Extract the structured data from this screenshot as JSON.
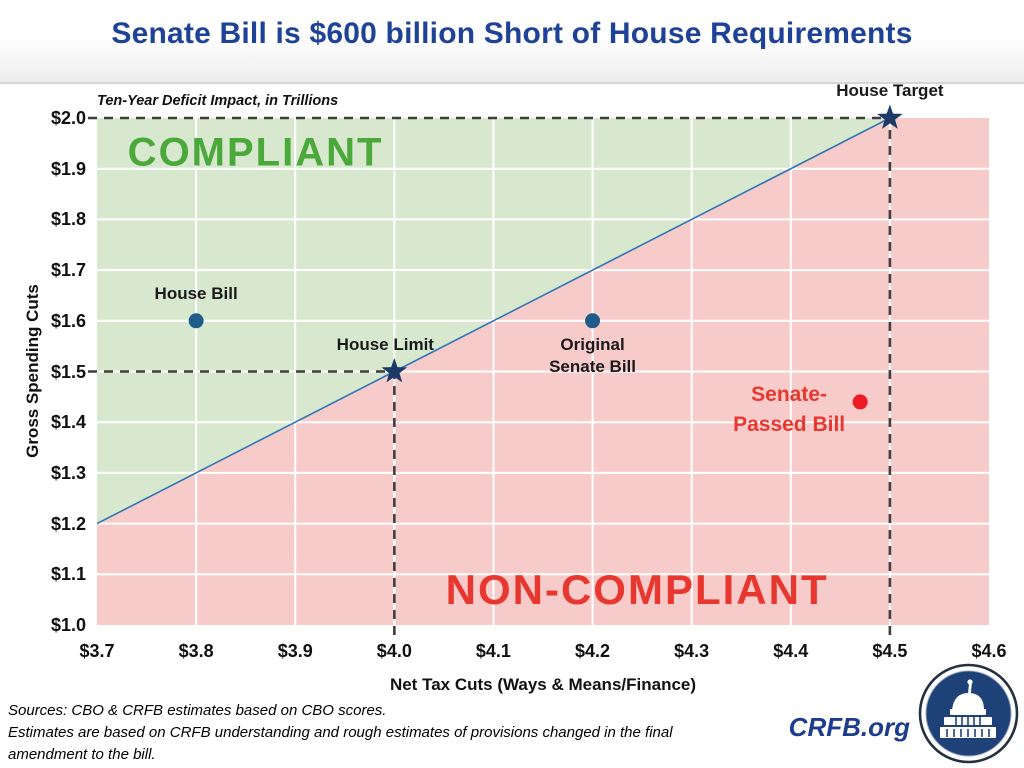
{
  "header": {
    "title": "Senate Bill is $600 billion Short of House Requirements"
  },
  "chart_data": {
    "type": "scatter",
    "subtitle": "Ten-Year Deficit Impact, in Trillions",
    "xlabel": "Net Tax Cuts (Ways & Means/Finance)",
    "ylabel": "Gross Spending Cuts",
    "xlim": [
      3.7,
      4.6
    ],
    "ylim": [
      1.0,
      2.0
    ],
    "grid": "white gridlines every 0.1, on",
    "legend": "none",
    "x_ticks": [
      "$3.7",
      "$3.8",
      "$3.9",
      "$4.0",
      "$4.1",
      "$4.2",
      "$4.3",
      "$4.4",
      "$4.5",
      "$4.6"
    ],
    "x_tick_values": [
      3.7,
      3.8,
      3.9,
      4.0,
      4.1,
      4.2,
      4.3,
      4.4,
      4.5,
      4.6
    ],
    "y_ticks": [
      "$1.0",
      "$1.1",
      "$1.2",
      "$1.3",
      "$1.4",
      "$1.5",
      "$1.6",
      "$1.7",
      "$1.8",
      "$1.9",
      "$2.0"
    ],
    "y_tick_values": [
      1.0,
      1.1,
      1.2,
      1.3,
      1.4,
      1.5,
      1.6,
      1.7,
      1.8,
      1.9,
      2.0
    ],
    "x_gridlines": [
      3.8,
      3.9,
      4.0,
      4.1,
      4.2,
      4.3,
      4.4,
      4.5
    ],
    "y_gridlines": [
      1.1,
      1.2,
      1.3,
      1.4,
      1.5,
      1.6,
      1.7,
      1.8,
      1.9
    ],
    "boundary_line": {
      "x1": 3.7,
      "y1": 1.2,
      "x2": 4.5,
      "y2": 2.0
    },
    "regions": {
      "compliant": {
        "label": "COMPLIANT",
        "polygon": [
          [
            3.7,
            2.0
          ],
          [
            4.5,
            2.0
          ],
          [
            3.7,
            1.2
          ]
        ],
        "label_center": [
          3.86,
          1.93
        ],
        "label_size": 40
      },
      "non_compliant": {
        "label": "NON-COMPLIANT",
        "label_center": [
          4.245,
          1.07
        ],
        "label_size": 42
      }
    },
    "guides": [
      {
        "x1": 3.7,
        "y1": 2.0,
        "x2": 4.5,
        "y2": 2.0,
        "extend_left": true
      },
      {
        "x1": 3.7,
        "y1": 1.5,
        "x2": 4.0,
        "y2": 1.5,
        "extend_left": true
      },
      {
        "x1": 4.0,
        "y1": 1.0,
        "x2": 4.0,
        "y2": 1.5,
        "extend_bottom": true
      },
      {
        "x1": 4.5,
        "y1": 1.0,
        "x2": 4.5,
        "y2": 2.0,
        "extend_bottom": true
      }
    ],
    "points": [
      {
        "name": "House Bill",
        "x": 3.8,
        "y": 1.6,
        "marker": "circle",
        "color": "#1F5C8A",
        "label_lines": [
          "House Bill"
        ],
        "label_position": "above"
      },
      {
        "name": "House Limit",
        "x": 4.0,
        "y": 1.5,
        "marker": "star",
        "color": "#1B3A68",
        "label_lines": [
          "House Limit"
        ],
        "label_position": "above",
        "label_dx": -9
      },
      {
        "name": "Original Senate Bill",
        "x": 4.2,
        "y": 1.6,
        "marker": "circle",
        "color": "#1F5C8A",
        "label_lines": [
          "Original",
          "Senate Bill"
        ],
        "label_position": "below"
      },
      {
        "name": "House Target",
        "x": 4.5,
        "y": 2.0,
        "marker": "star",
        "color": "#1B3A68",
        "label_lines": [
          "House Target"
        ],
        "label_position": "above"
      },
      {
        "name": "Senate-Passed Bill",
        "x": 4.47,
        "y": 1.44,
        "marker": "circle",
        "color": "#EC1B23",
        "label_lines": [
          "Senate-",
          "Passed Bill"
        ],
        "label_position": "left",
        "label_color": "#E8372E",
        "label_size": 21
      }
    ]
  },
  "colors": {
    "title": "#1E4296",
    "compliant_bg": "#D7E8CF",
    "noncompliant_bg": "#F8CBCB",
    "compliant_text": "#4BA83A",
    "noncompliant_text": "#E8372E",
    "boundary_line": "#2E75B6",
    "guide_dash": "#3F3F3F",
    "gridline": "#FFFFFF",
    "navy_marker": "#1B3A68",
    "blue_marker": "#1F5C8A",
    "red_marker": "#EC1B23",
    "crfb_blue": "#1E3C8C"
  },
  "footer": {
    "lines": [
      "Sources: CBO & CRFB estimates based on CBO scores.",
      "Estimates are based on CRFB understanding and rough estimates of provisions changed in the final",
      "amendment to the bill."
    ],
    "crfb": "CRFB.org"
  }
}
